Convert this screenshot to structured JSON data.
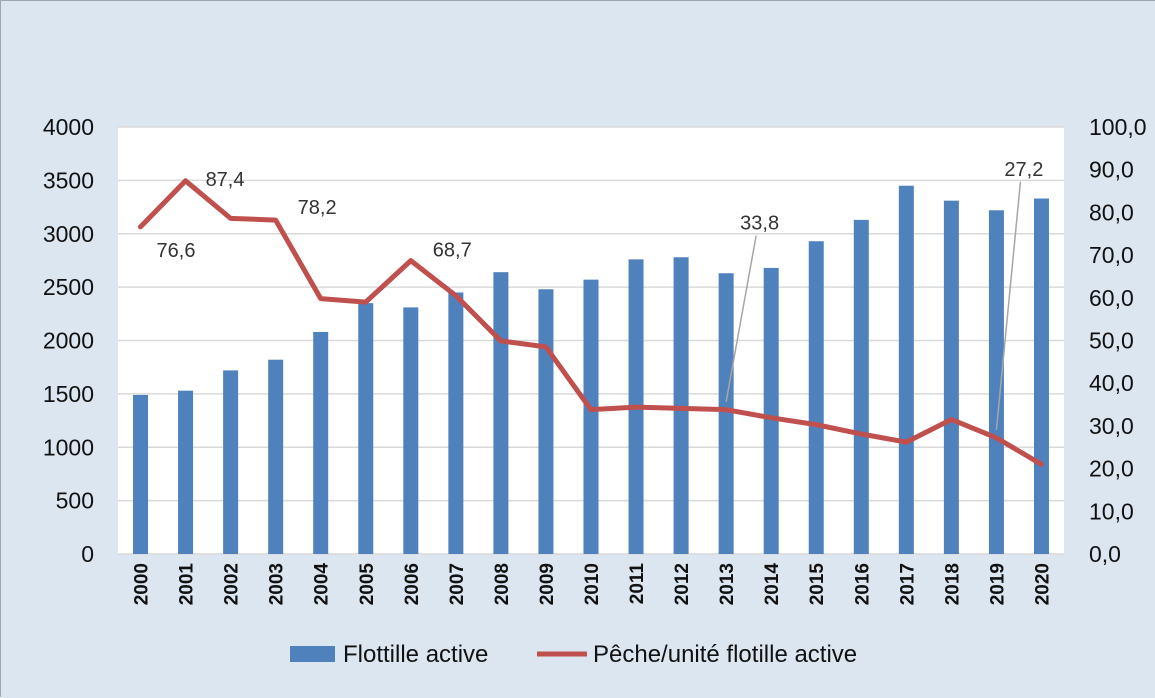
{
  "chart_data": {
    "type": "bar+line",
    "title": "",
    "categories": [
      "2000",
      "2001",
      "2002",
      "2003",
      "2004",
      "2005",
      "2006",
      "2007",
      "2008",
      "2009",
      "2010",
      "2011",
      "2012",
      "2013",
      "2014",
      "2015",
      "2016",
      "2017",
      "2018",
      "2019",
      "2020"
    ],
    "series": [
      {
        "name": "Flottille active",
        "type": "bar",
        "axis": "left",
        "color": "#4f81bd",
        "values": [
          1490,
          1530,
          1720,
          1820,
          2080,
          2350,
          2310,
          2450,
          2640,
          2480,
          2570,
          2760,
          2780,
          2630,
          2680,
          2930,
          3130,
          3450,
          3310,
          3220,
          3330
        ]
      },
      {
        "name": "Pêche/unité flotille active",
        "type": "line",
        "axis": "right",
        "color": "#c0504d",
        "values": [
          76.6,
          87.4,
          78.6,
          78.2,
          59.8,
          59.0,
          68.7,
          60.5,
          49.9,
          48.5,
          33.8,
          34.4,
          34.1,
          33.8,
          31.9,
          30.3,
          28.1,
          26.2,
          31.5,
          27.2,
          21.0
        ]
      }
    ],
    "y_left": {
      "min": 0,
      "max": 4000,
      "ticks": [
        "0",
        "500",
        "1000",
        "1500",
        "2000",
        "2500",
        "3000",
        "3500",
        "4000"
      ]
    },
    "y_right": {
      "min": 0,
      "max": 100,
      "ticks": [
        "0,0",
        "10,0",
        "20,0",
        "30,0",
        "40,0",
        "50,0",
        "60,0",
        "70,0",
        "80,0",
        "90,0",
        "100,0"
      ]
    },
    "data_labels": [
      {
        "index": 0,
        "text": "76,6"
      },
      {
        "index": 1,
        "text": "87,4"
      },
      {
        "index": 3,
        "text": "78,2"
      },
      {
        "index": 6,
        "text": "68,7"
      },
      {
        "index": 13,
        "text": "33,8"
      },
      {
        "index": 19,
        "text": "27,2"
      }
    ],
    "grid": true,
    "legend_position": "bottom",
    "colors": {
      "background": "#dce6f1",
      "plot_background": "#ffffff",
      "grid": "#d9d9d9"
    }
  }
}
